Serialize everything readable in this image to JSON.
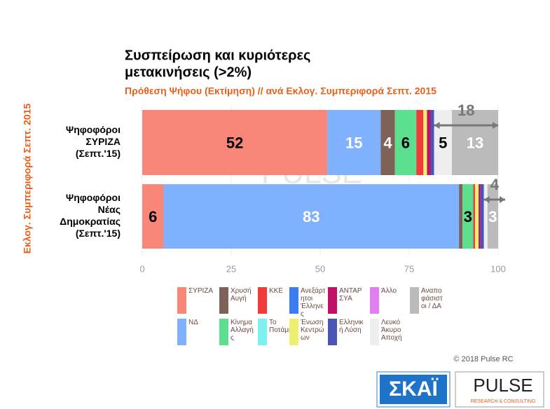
{
  "chart_data": {
    "type": "stacked-bar-horizontal",
    "title": [
      "Συσπείρωση και κυριότερες",
      "μετακινήσεις (>2%)"
    ],
    "subtitle": "Πρόθεση Ψήφου (Εκτίμηση) // ανά Εκλογ. Συμπεριφορά Σεπτ. 2015",
    "y_axis_label": "Εκλογ. Συμπεριφορά Σεπτ. 2015",
    "categories": [
      [
        "Ψηφοφόροι",
        "ΣΥΡΙΖΑ",
        "(Σεπτ.'15)"
      ],
      [
        "Ψηφοφόροι",
        "Νέας",
        "Δημοκρατίας",
        "(Σεπτ.'15)"
      ]
    ],
    "series": [
      {
        "name": "ΣΥΡΙΖΑ",
        "color": "#f8877a",
        "values": [
          52,
          6
        ]
      },
      {
        "name": "ΝΔ",
        "color": "#80b1ff",
        "values": [
          15,
          83
        ]
      },
      {
        "name": "Χρυσή Αυγή",
        "color": "#7f6257",
        "values": [
          4,
          1
        ]
      },
      {
        "name": "Κίνημα Αλλαγής",
        "color": "#5ce08f",
        "values": [
          6,
          3
        ]
      },
      {
        "name": "ΚΚΕ",
        "color": "#f03b3b",
        "values": [
          2,
          0.5
        ]
      },
      {
        "name": "Το Ποτάμι",
        "color": "#7ef0f0",
        "values": [
          0,
          0
        ]
      },
      {
        "name": "Ανεξάρτητοι Έλληνες",
        "color": "#3a7ef0",
        "values": [
          0,
          0
        ]
      },
      {
        "name": "Ένωση Κεντρώων",
        "color": "#f0f070",
        "values": [
          1,
          1
        ]
      },
      {
        "name": "ΑΝΤΑΡΣΥΑ",
        "color": "#c0106a",
        "values": [
          1,
          0.5
        ]
      },
      {
        "name": "Ελληνική Λύση",
        "color": "#4a55b5",
        "values": [
          1,
          1
        ]
      },
      {
        "name": "Άλλο",
        "color": "#e080f0",
        "values": [
          0,
          0
        ]
      },
      {
        "name": "Λευκό Άκυρο Αποχή",
        "color": "#eeeeee",
        "values": [
          5,
          1
        ]
      },
      {
        "name": "Αναποφάσιστοι / ΔΑ",
        "color": "#bbbbbb",
        "values": [
          13,
          3
        ]
      }
    ],
    "label_colors": [
      "#000000",
      "#ffffff",
      "#ffffff",
      "#000000",
      "#ffffff",
      "#000000",
      "#ffffff",
      "#000000",
      "#ffffff",
      "#ffffff",
      "#000000",
      "#000000",
      "#ffffff"
    ],
    "annotations": [
      18,
      4
    ],
    "xlim": [
      0,
      100
    ],
    "xticks": [
      0,
      25,
      50,
      75,
      100
    ],
    "grid": true
  },
  "footer": {
    "copyright": "© 2018 Pulse RC",
    "logo_skai": "ΣΚΑΪ",
    "logo_pulse": "PULSE",
    "logo_pulse_sub": "RESEARCH & CONSULTING"
  }
}
